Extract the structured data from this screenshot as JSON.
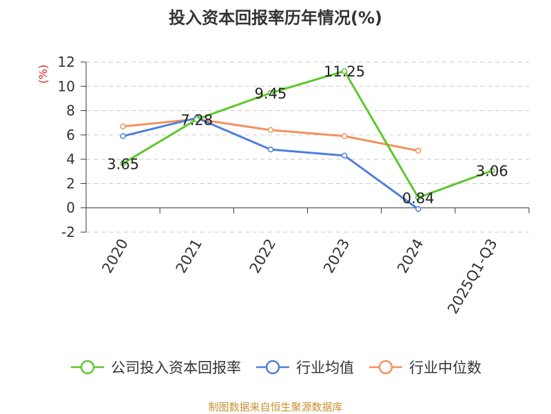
{
  "title": "投入资本回报率历年情况(%)",
  "source_note": "制图数据来自恒生聚源数据库",
  "colors": {
    "company": "#5cc72a",
    "industry_avg": "#4d7fdc",
    "industry_median": "#f4905a",
    "ylabel": "#e02020",
    "grid": "#c8c8c8",
    "axis": "#333333"
  },
  "chart_data": {
    "type": "line",
    "title": "投入资本回报率历年情况(%)",
    "xlabel": "",
    "ylabel": "(%)",
    "categories": [
      "2020",
      "2021",
      "2022",
      "2023",
      "2024",
      "2025Q1-Q3"
    ],
    "ylim": [
      -2,
      12
    ],
    "yticks": [
      "-2",
      "0",
      "2",
      "4",
      "6",
      "8",
      "10",
      "12"
    ],
    "grid": true,
    "legend_position": "bottom",
    "series": [
      {
        "name": "公司投入资本回报率",
        "color": "#5cc72a",
        "values": [
          3.65,
          7.28,
          9.45,
          11.25,
          0.84,
          3.06
        ],
        "labels": [
          "3.65",
          "7.28",
          "9.45",
          "11.25",
          "0.84",
          "3.06"
        ]
      },
      {
        "name": "行业均值",
        "color": "#4d7fdc",
        "values": [
          5.9,
          7.4,
          4.8,
          4.3,
          -0.1,
          null
        ]
      },
      {
        "name": "行业中位数",
        "color": "#f4905a",
        "values": [
          6.7,
          7.3,
          6.4,
          5.9,
          4.7,
          null
        ]
      }
    ]
  }
}
